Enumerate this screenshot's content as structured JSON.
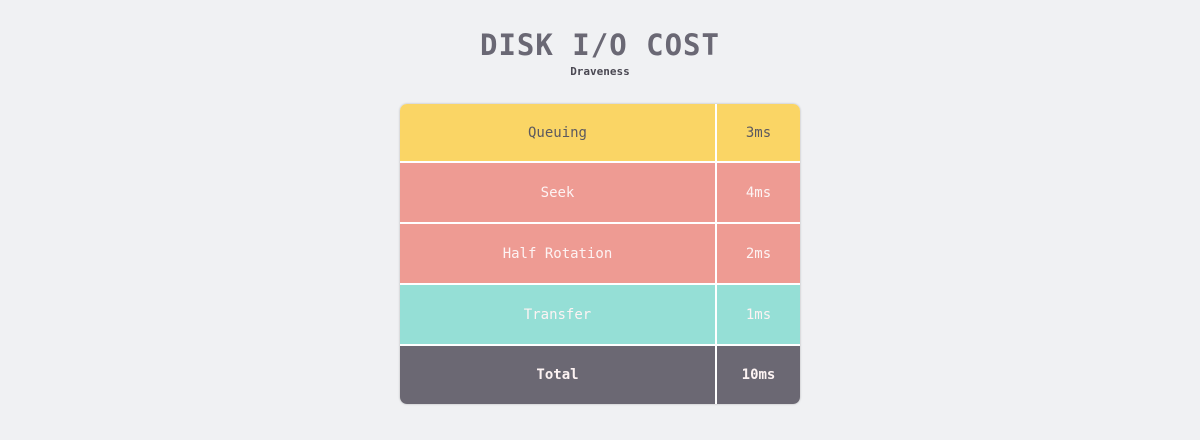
{
  "title": "DISK I/O COST",
  "subtitle": "Draveness",
  "rows": [
    {
      "label": "Queuing",
      "value": "3ms",
      "color": "#fad565"
    },
    {
      "label": "Seek",
      "value": "4ms",
      "color": "#ee9b93"
    },
    {
      "label": "Half Rotation",
      "value": "2ms",
      "color": "#ee9b93"
    },
    {
      "label": "Transfer",
      "value": "1ms",
      "color": "#95dfd6"
    },
    {
      "label": "Total",
      "value": "10ms",
      "color": "#6b6873"
    }
  ]
}
